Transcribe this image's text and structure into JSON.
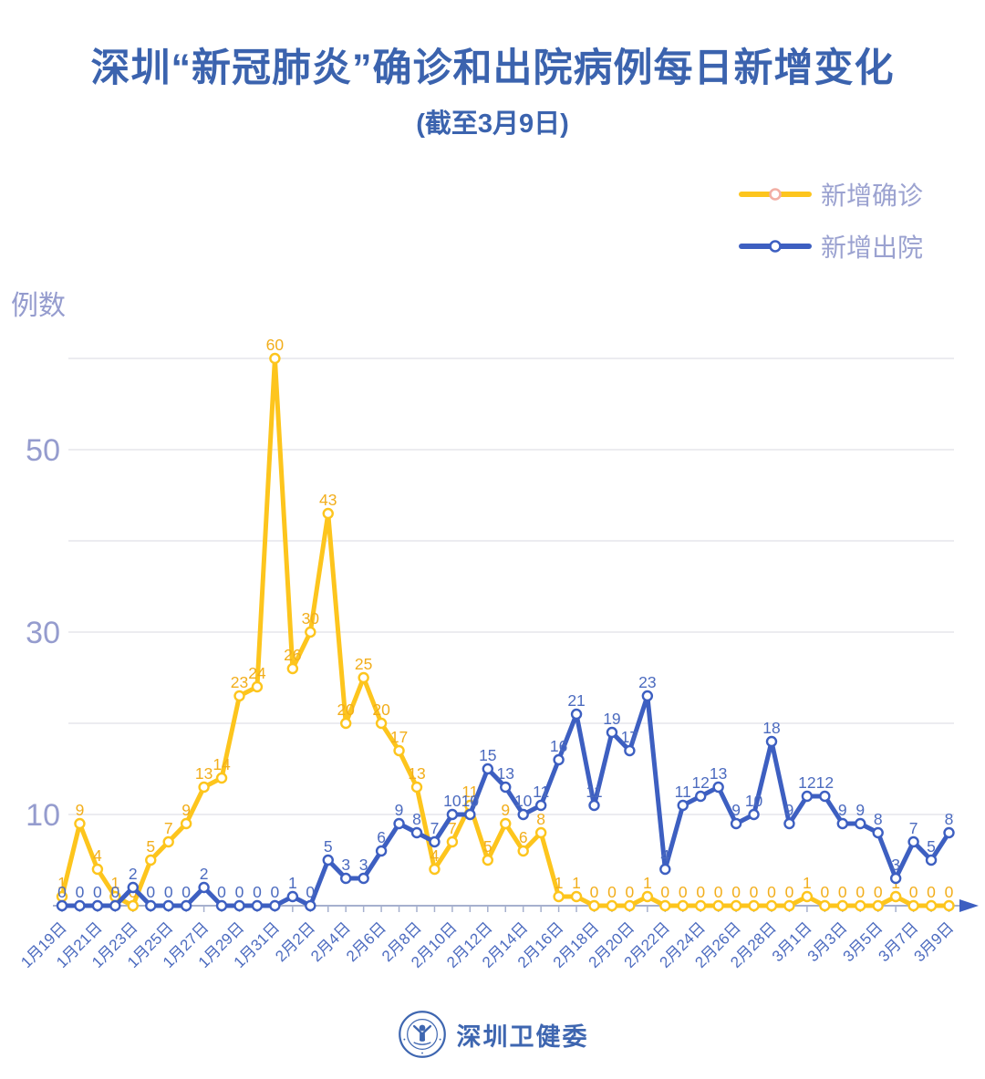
{
  "header": {
    "title": "深圳“新冠肺炎”确诊和出院病例每日新增变化",
    "subtitle": "(截至3月9日)"
  },
  "legend": {
    "confirmed": "新增确诊",
    "discharged": "新增出院"
  },
  "colors": {
    "confirmed_line": "#FDC51D",
    "confirmed_label": "#F2AE1C",
    "discharged_line": "#3D5FC1",
    "discharged_label": "#4C6BBF",
    "axis": "#A6B0CE",
    "gridline": "#E6E6EC",
    "tick_text": "#959CCE",
    "title_blue": "#3B63AE",
    "x_label": "#4C6BBF",
    "legend_text": "#9BA2D0",
    "legend_confirmed_ring": "#F2AFA4",
    "emblem_blue": "#3E66B0"
  },
  "footer": {
    "org_name": "深圳卫健委"
  },
  "chart_data": {
    "type": "line",
    "title": "深圳“新冠肺炎”确诊和出院病例每日新增变化",
    "subtitle": "(截至3月9日)",
    "ylabel": "例数",
    "xlabel": "",
    "x": [
      "1月19日",
      "1月20日",
      "1月21日",
      "1月22日",
      "1月23日",
      "1月24日",
      "1月25日",
      "1月26日",
      "1月27日",
      "1月28日",
      "1月29日",
      "1月30日",
      "1月31日",
      "2月1日",
      "2月2日",
      "2月3日",
      "2月4日",
      "2月5日",
      "2月6日",
      "2月7日",
      "2月8日",
      "2月9日",
      "2月10日",
      "2月11日",
      "2月12日",
      "2月13日",
      "2月14日",
      "2月15日",
      "2月16日",
      "2月17日",
      "2月18日",
      "2月19日",
      "2月20日",
      "2月21日",
      "2月22日",
      "2月23日",
      "2月24日",
      "2月25日",
      "2月26日",
      "2月27日",
      "2月28日",
      "2月29日",
      "3月1日",
      "3月2日",
      "3月3日",
      "3月4日",
      "3月5日",
      "3月6日",
      "3月7日",
      "3月8日",
      "3月9日"
    ],
    "x_label_interval": 2,
    "y_tick_labels": [
      10,
      30,
      50
    ],
    "grid_values": [
      10,
      20,
      30,
      40,
      50,
      60
    ],
    "ylim": [
      0,
      62
    ],
    "grid": true,
    "legend_position": "top-right",
    "point_labels": true,
    "series": [
      {
        "name": "新增确诊",
        "color_key": "confirmed",
        "values": [
          1,
          9,
          4,
          1,
          0,
          5,
          7,
          9,
          13,
          14,
          23,
          24,
          60,
          26,
          30,
          43,
          20,
          25,
          20,
          17,
          13,
          4,
          7,
          11,
          5,
          9,
          6,
          8,
          1,
          1,
          0,
          0,
          0,
          1,
          0,
          0,
          0,
          0,
          0,
          0,
          0,
          0,
          1,
          0,
          0,
          0,
          0,
          1,
          0,
          0,
          0
        ]
      },
      {
        "name": "新增出院",
        "color_key": "discharged",
        "values": [
          0,
          0,
          0,
          0,
          2,
          0,
          0,
          0,
          2,
          0,
          0,
          0,
          0,
          1,
          0,
          5,
          3,
          3,
          6,
          9,
          8,
          7,
          10,
          10,
          15,
          13,
          10,
          11,
          16,
          21,
          11,
          19,
          17,
          23,
          4,
          11,
          12,
          13,
          9,
          10,
          18,
          9,
          12,
          12,
          9,
          9,
          8,
          3,
          7,
          5,
          8
        ]
      }
    ]
  }
}
